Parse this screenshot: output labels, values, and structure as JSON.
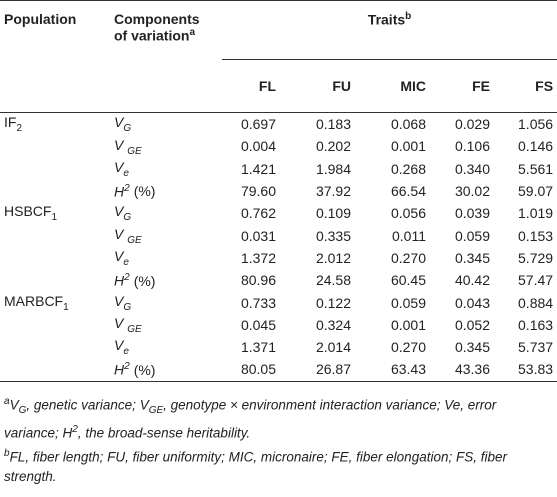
{
  "table": {
    "header": {
      "population": "Population",
      "components": [
        "Components",
        "of variation",
        "a"
      ],
      "traits": [
        "Traits",
        "b"
      ],
      "columns": [
        "FL",
        "FU",
        "MIC",
        "FE",
        "FS"
      ]
    },
    "groups": [
      {
        "population": [
          "IF",
          "2"
        ],
        "rows": [
          {
            "component": [
              "V",
              "G"
            ],
            "values": [
              "0.697",
              "0.183",
              "0.068",
              "0.029",
              "1.056"
            ]
          },
          {
            "component": [
              "V ",
              "GE"
            ],
            "values": [
              "0.004",
              "0.202",
              "0.001",
              "0.106",
              "0.146"
            ]
          },
          {
            "component": [
              "V",
              "e"
            ],
            "values": [
              "1.421",
              "1.984",
              "0.268",
              "0.340",
              "5.561"
            ]
          },
          {
            "component": [
              "H",
              "2",
              "(%)"
            ],
            "values": [
              "79.60",
              "37.92",
              "66.54",
              "30.02",
              "59.07"
            ]
          }
        ]
      },
      {
        "population": [
          "HSBCF",
          "1"
        ],
        "rows": [
          {
            "component": [
              "V",
              "G"
            ],
            "values": [
              "0.762",
              "0.109",
              "0.056",
              "0.039",
              "1.019"
            ]
          },
          {
            "component": [
              "V ",
              "GE"
            ],
            "values": [
              "0.031",
              "0.335",
              "0.011",
              "0.059",
              "0.153"
            ]
          },
          {
            "component": [
              "V",
              "e"
            ],
            "values": [
              "1.372",
              "2.012",
              "0.270",
              "0.345",
              "5.729"
            ]
          },
          {
            "component": [
              "H",
              "2",
              "(%)"
            ],
            "values": [
              "80.96",
              "24.58",
              "60.45",
              "40.42",
              "57.47"
            ]
          }
        ]
      },
      {
        "population": [
          "MARBCF",
          "1"
        ],
        "rows": [
          {
            "component": [
              "V",
              "G"
            ],
            "values": [
              "0.733",
              "0.122",
              "0.059",
              "0.043",
              "0.884"
            ]
          },
          {
            "component": [
              "V ",
              "GE"
            ],
            "values": [
              "0.045",
              "0.324",
              "0.001",
              "0.052",
              "0.163"
            ]
          },
          {
            "component": [
              "V",
              "e"
            ],
            "values": [
              "1.371",
              "2.014",
              "0.270",
              "0.345",
              "5.737"
            ]
          },
          {
            "component": [
              "H",
              "2",
              "(%)"
            ],
            "values": [
              "80.05",
              "26.87",
              "63.43",
              "43.36",
              "53.83"
            ]
          }
        ]
      }
    ]
  },
  "footnotes": [
    [
      "a",
      "V",
      "G",
      ", genetic variance; ",
      "V",
      "GE",
      ", genotype × environment interaction variance; Ve, error variance; ",
      "H",
      "2",
      ", the broad-sense heritability."
    ],
    [
      "b",
      "FL, fiber length; FU, fiber uniformity; MIC, micronaire; FE, fiber elongation; FS, fiber strength."
    ]
  ]
}
